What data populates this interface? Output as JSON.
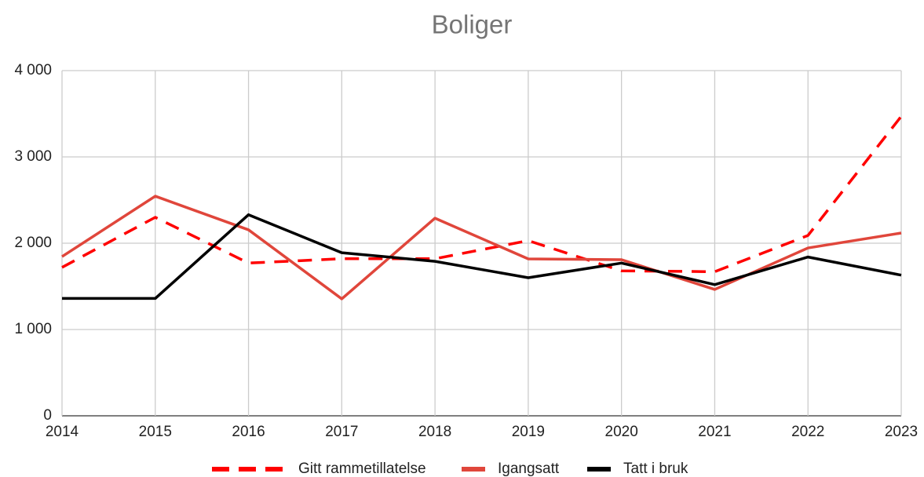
{
  "chart_data": {
    "type": "line",
    "title": "Boliger",
    "x": [
      2014,
      2015,
      2016,
      2017,
      2018,
      2019,
      2020,
      2021,
      2022,
      2023
    ],
    "xlim": [
      2014,
      2023
    ],
    "xticks": [
      2014,
      2015,
      2016,
      2017,
      2018,
      2019,
      2020,
      2021,
      2022,
      2023
    ],
    "ylim": [
      0,
      4000
    ],
    "yticks": [
      0,
      {
        "value": 1000,
        "label": "1 000"
      },
      {
        "value": 2000,
        "label": "2 000"
      },
      {
        "value": 3000,
        "label": "3 000"
      },
      {
        "value": 4000,
        "label": "4 000"
      }
    ],
    "grid": true,
    "legend": "bottom",
    "series": [
      {
        "name": "Gitt rammetillatelse",
        "color": "#ff0000",
        "dashed": true,
        "values": [
          1720,
          2300,
          1770,
          1820,
          1820,
          2030,
          1680,
          1670,
          2090,
          3470
        ]
      },
      {
        "name": "Igangsatt",
        "color": "#e0463b",
        "dashed": false,
        "values": [
          1845,
          2545,
          2155,
          1355,
          2290,
          1818,
          1809,
          1464,
          1945,
          2118
        ]
      },
      {
        "name": "Tatt i bruk",
        "color": "#000000",
        "dashed": false,
        "values": [
          1360,
          1360,
          2330,
          1890,
          1790,
          1600,
          1770,
          1520,
          1840,
          1630
        ]
      }
    ]
  }
}
